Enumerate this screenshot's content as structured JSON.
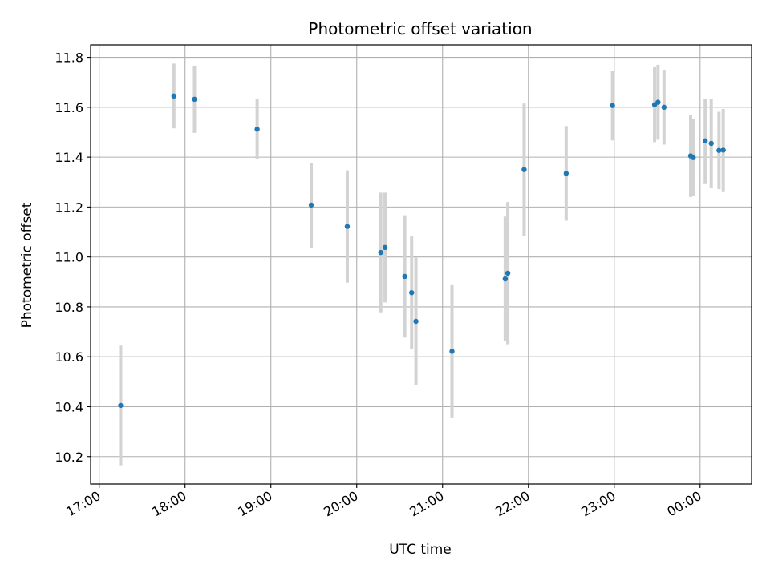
{
  "chart_data": {
    "type": "scatter",
    "title": "Photometric offset variation",
    "xlabel": "UTC time",
    "ylabel": "Photometric offset",
    "x_unit": "hours (UTC, 24 = 00:00 next day)",
    "xlim": [
      16.9,
      24.6
    ],
    "ylim": [
      10.09,
      11.85
    ],
    "x_ticks": [
      17,
      18,
      19,
      20,
      21,
      22,
      23,
      24
    ],
    "x_tick_labels": [
      "17:00",
      "18:00",
      "19:00",
      "20:00",
      "21:00",
      "22:00",
      "23:00",
      "00:00"
    ],
    "y_ticks": [
      10.2,
      10.4,
      10.6,
      10.8,
      11.0,
      11.2,
      11.4,
      11.6,
      11.8
    ],
    "y_tick_labels": [
      "10.2",
      "10.4",
      "10.6",
      "10.8",
      "11.0",
      "11.2",
      "11.4",
      "11.6",
      "11.8"
    ],
    "grid": true,
    "point_color": "#1f77b4",
    "errorbar_color": "#d3d3d3",
    "points": [
      {
        "x": 17.25,
        "y": 10.405,
        "err": 0.24
      },
      {
        "x": 17.87,
        "y": 11.645,
        "err": 0.13
      },
      {
        "x": 18.11,
        "y": 11.632,
        "err": 0.135
      },
      {
        "x": 18.84,
        "y": 11.512,
        "err": 0.12
      },
      {
        "x": 19.47,
        "y": 11.208,
        "err": 0.17
      },
      {
        "x": 19.89,
        "y": 11.122,
        "err": 0.225
      },
      {
        "x": 20.28,
        "y": 11.018,
        "err": 0.24
      },
      {
        "x": 20.33,
        "y": 11.038,
        "err": 0.22
      },
      {
        "x": 20.56,
        "y": 10.922,
        "err": 0.245
      },
      {
        "x": 20.64,
        "y": 10.857,
        "err": 0.225
      },
      {
        "x": 20.69,
        "y": 10.742,
        "err": 0.255
      },
      {
        "x": 21.11,
        "y": 10.622,
        "err": 0.265
      },
      {
        "x": 21.73,
        "y": 10.912,
        "err": 0.25
      },
      {
        "x": 21.76,
        "y": 10.935,
        "err": 0.285
      },
      {
        "x": 21.95,
        "y": 11.35,
        "err": 0.265
      },
      {
        "x": 22.44,
        "y": 11.335,
        "err": 0.19
      },
      {
        "x": 22.98,
        "y": 11.607,
        "err": 0.14
      },
      {
        "x": 23.47,
        "y": 11.61,
        "err": 0.15
      },
      {
        "x": 23.51,
        "y": 11.62,
        "err": 0.15
      },
      {
        "x": 23.58,
        "y": 11.6,
        "err": 0.15
      },
      {
        "x": 23.89,
        "y": 11.405,
        "err": 0.165
      },
      {
        "x": 23.92,
        "y": 11.398,
        "err": 0.155
      },
      {
        "x": 24.06,
        "y": 11.465,
        "err": 0.17
      },
      {
        "x": 24.13,
        "y": 11.455,
        "err": 0.18
      },
      {
        "x": 24.22,
        "y": 11.427,
        "err": 0.155
      },
      {
        "x": 24.27,
        "y": 11.428,
        "err": 0.165
      }
    ]
  }
}
